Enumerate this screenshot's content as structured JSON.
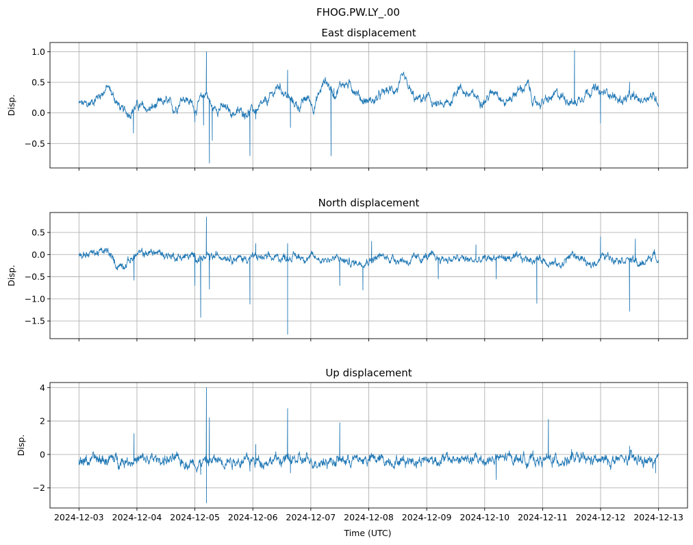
{
  "figure": {
    "suptitle": "FHOG.PW.LY_.00",
    "xlabel": "Time (UTC)",
    "x_tick_labels": [
      "2024-12-03",
      "2024-12-04",
      "2024-12-05",
      "2024-12-06",
      "2024-12-07",
      "2024-12-08",
      "2024-12-09",
      "2024-12-10",
      "2024-12-11",
      "2024-12-12",
      "2024-12-13"
    ]
  },
  "colors": {
    "line": "#1f77b4",
    "grid": "#b0b0b0",
    "axes": "#000000",
    "background": "#ffffff"
  },
  "chart_data": [
    {
      "type": "line",
      "title": "East displacement",
      "ylabel": "Disp.",
      "xlim_days": [
        -0.5,
        10.5
      ],
      "ylim": [
        -0.9,
        1.15
      ],
      "yticks": [
        -0.5,
        0.0,
        0.5,
        1.0
      ],
      "ytick_labels": [
        "−0.5",
        "0.0",
        "0.5",
        "1.0"
      ],
      "x_range_days": [
        0,
        10
      ],
      "baseline_knots": [
        [
          0,
          0.15
        ],
        [
          0.15,
          0.12
        ],
        [
          0.3,
          0.25
        ],
        [
          0.5,
          0.42
        ],
        [
          0.65,
          0.18
        ],
        [
          0.75,
          0.02
        ],
        [
          0.85,
          0.0
        ],
        [
          1.0,
          0.12
        ],
        [
          1.2,
          0.05
        ],
        [
          1.35,
          0.12
        ],
        [
          1.5,
          0.18
        ],
        [
          1.65,
          0.06
        ],
        [
          1.8,
          0.28
        ],
        [
          1.95,
          0.15
        ],
        [
          2.0,
          0.06
        ],
        [
          2.2,
          0.35
        ],
        [
          2.3,
          0.06
        ],
        [
          2.45,
          0.1
        ],
        [
          2.65,
          0.0
        ],
        [
          2.9,
          0.02
        ],
        [
          3.1,
          0.05
        ],
        [
          3.25,
          0.18
        ],
        [
          3.45,
          0.45
        ],
        [
          3.65,
          0.2
        ],
        [
          3.8,
          0.1
        ],
        [
          3.95,
          0.25
        ],
        [
          4.05,
          0.1
        ],
        [
          4.25,
          0.55
        ],
        [
          4.4,
          0.3
        ],
        [
          4.55,
          0.5
        ],
        [
          4.75,
          0.4
        ],
        [
          4.9,
          0.2
        ],
        [
          5.1,
          0.2
        ],
        [
          5.3,
          0.35
        ],
        [
          5.5,
          0.4
        ],
        [
          5.6,
          0.55
        ],
        [
          5.8,
          0.2
        ],
        [
          6.0,
          0.25
        ],
        [
          6.2,
          0.1
        ],
        [
          6.4,
          0.15
        ],
        [
          6.55,
          0.45
        ],
        [
          6.7,
          0.3
        ],
        [
          6.9,
          0.25
        ],
        [
          7.0,
          0.2
        ],
        [
          7.2,
          0.4
        ],
        [
          7.35,
          0.15
        ],
        [
          7.55,
          0.35
        ],
        [
          7.75,
          0.45
        ],
        [
          7.85,
          0.15
        ],
        [
          8.1,
          0.2
        ],
        [
          8.25,
          0.3
        ],
        [
          8.4,
          0.25
        ],
        [
          8.55,
          0.15
        ],
        [
          8.75,
          0.35
        ],
        [
          8.9,
          0.4
        ],
        [
          9.0,
          0.3
        ],
        [
          9.15,
          0.35
        ],
        [
          9.3,
          0.2
        ],
        [
          9.5,
          0.25
        ],
        [
          9.7,
          0.2
        ],
        [
          9.85,
          0.3
        ],
        [
          10.0,
          0.2
        ]
      ],
      "spikes": [
        [
          0.94,
          -0.33
        ],
        [
          2.0,
          -0.15
        ],
        [
          2.15,
          -0.2
        ],
        [
          2.2,
          1.0
        ],
        [
          2.25,
          -0.82
        ],
        [
          2.3,
          -0.45
        ],
        [
          2.95,
          -0.7
        ],
        [
          3.05,
          -0.1
        ],
        [
          3.6,
          0.7
        ],
        [
          3.65,
          -0.24
        ],
        [
          4.35,
          -0.7
        ],
        [
          4.4,
          0.4
        ],
        [
          8.55,
          1.02
        ],
        [
          9.0,
          -0.17
        ],
        [
          9.5,
          0.5
        ]
      ],
      "noise_amplitude": 0.05
    },
    {
      "type": "line",
      "title": "North displacement",
      "ylabel": "Disp.",
      "xlim_days": [
        -0.5,
        10.5
      ],
      "ylim": [
        -1.9,
        0.95
      ],
      "yticks": [
        -1.5,
        -1.0,
        -0.5,
        0.0,
        0.5
      ],
      "ytick_labels": [
        "−1.5",
        "−1.0",
        "−0.5",
        "0.0",
        "0.5"
      ],
      "x_range_days": [
        0,
        10
      ],
      "baseline_knots": [
        [
          0,
          0.0
        ],
        [
          0.3,
          0.05
        ],
        [
          0.5,
          0.05
        ],
        [
          0.65,
          -0.25
        ],
        [
          0.8,
          -0.2
        ],
        [
          1.0,
          0.0
        ],
        [
          1.3,
          0.05
        ],
        [
          1.5,
          0.0
        ],
        [
          1.7,
          -0.05
        ],
        [
          2.0,
          -0.05
        ],
        [
          2.2,
          -0.1
        ],
        [
          2.5,
          0.0
        ],
        [
          2.8,
          -0.1
        ],
        [
          3.0,
          -0.05
        ],
        [
          3.3,
          -0.1
        ],
        [
          3.6,
          -0.05
        ],
        [
          3.9,
          -0.05
        ],
        [
          4.2,
          -0.1
        ],
        [
          4.5,
          -0.1
        ],
        [
          4.7,
          -0.2
        ],
        [
          4.9,
          -0.15
        ],
        [
          5.2,
          -0.05
        ],
        [
          5.5,
          -0.1
        ],
        [
          5.7,
          -0.15
        ],
        [
          6.0,
          -0.05
        ],
        [
          6.3,
          -0.1
        ],
        [
          6.6,
          -0.1
        ],
        [
          6.9,
          -0.15
        ],
        [
          7.2,
          -0.05
        ],
        [
          7.5,
          -0.1
        ],
        [
          7.8,
          -0.1
        ],
        [
          8.0,
          -0.1
        ],
        [
          8.3,
          -0.25
        ],
        [
          8.5,
          0.0
        ],
        [
          8.7,
          -0.1
        ],
        [
          8.8,
          -0.3
        ],
        [
          9.0,
          -0.05
        ],
        [
          9.2,
          -0.05
        ],
        [
          9.5,
          -0.1
        ],
        [
          9.7,
          -0.25
        ],
        [
          9.9,
          0.0
        ],
        [
          10.0,
          -0.1
        ]
      ],
      "spikes": [
        [
          0.95,
          -0.58
        ],
        [
          2.0,
          -0.7
        ],
        [
          2.1,
          -1.42
        ],
        [
          2.2,
          0.85
        ],
        [
          2.25,
          -0.78
        ],
        [
          2.95,
          -1.12
        ],
        [
          3.05,
          0.25
        ],
        [
          3.6,
          0.25
        ],
        [
          3.6,
          -1.8
        ],
        [
          4.5,
          -0.7
        ],
        [
          4.9,
          -0.8
        ],
        [
          5.05,
          0.3
        ],
        [
          6.2,
          -0.55
        ],
        [
          6.85,
          0.22
        ],
        [
          7.2,
          -0.55
        ],
        [
          7.9,
          -1.1
        ],
        [
          9.0,
          0.4
        ],
        [
          9.5,
          -1.28
        ],
        [
          9.6,
          0.35
        ]
      ],
      "noise_amplitude": 0.06
    },
    {
      "type": "line",
      "title": "Up displacement",
      "ylabel": "Disp.",
      "xlim_days": [
        -0.5,
        10.5
      ],
      "ylim": [
        -3.2,
        4.3
      ],
      "yticks": [
        -2,
        0,
        2,
        4
      ],
      "ytick_labels": [
        "−2",
        "0",
        "2",
        "4"
      ],
      "x_range_days": [
        0,
        10
      ],
      "baseline_knots": [
        [
          0,
          -0.4
        ],
        [
          0.5,
          -0.3
        ],
        [
          1.0,
          -0.35
        ],
        [
          1.5,
          -0.3
        ],
        [
          2.0,
          -0.5
        ],
        [
          2.5,
          -0.3
        ],
        [
          3.0,
          -0.4
        ],
        [
          3.5,
          -0.3
        ],
        [
          4.0,
          -0.4
        ],
        [
          4.5,
          -0.35
        ],
        [
          5.0,
          -0.3
        ],
        [
          5.5,
          -0.35
        ],
        [
          6.0,
          -0.3
        ],
        [
          6.5,
          -0.3
        ],
        [
          7.0,
          -0.35
        ],
        [
          7.5,
          -0.2
        ],
        [
          8.0,
          -0.35
        ],
        [
          8.5,
          -0.3
        ],
        [
          9.0,
          -0.4
        ],
        [
          9.5,
          -0.3
        ],
        [
          10.0,
          -0.5
        ]
      ],
      "spikes": [
        [
          0.95,
          1.25
        ],
        [
          2.1,
          -1.2
        ],
        [
          2.2,
          4.0
        ],
        [
          2.2,
          -2.9
        ],
        [
          2.25,
          2.2
        ],
        [
          2.95,
          -1.0
        ],
        [
          3.05,
          0.6
        ],
        [
          3.6,
          2.75
        ],
        [
          3.65,
          -1.1
        ],
        [
          4.5,
          1.9
        ],
        [
          7.2,
          -1.5
        ],
        [
          8.1,
          2.1
        ],
        [
          8.5,
          0.3
        ],
        [
          9.5,
          0.5
        ],
        [
          9.95,
          -1.1
        ]
      ],
      "noise_amplitude": 0.22
    }
  ]
}
